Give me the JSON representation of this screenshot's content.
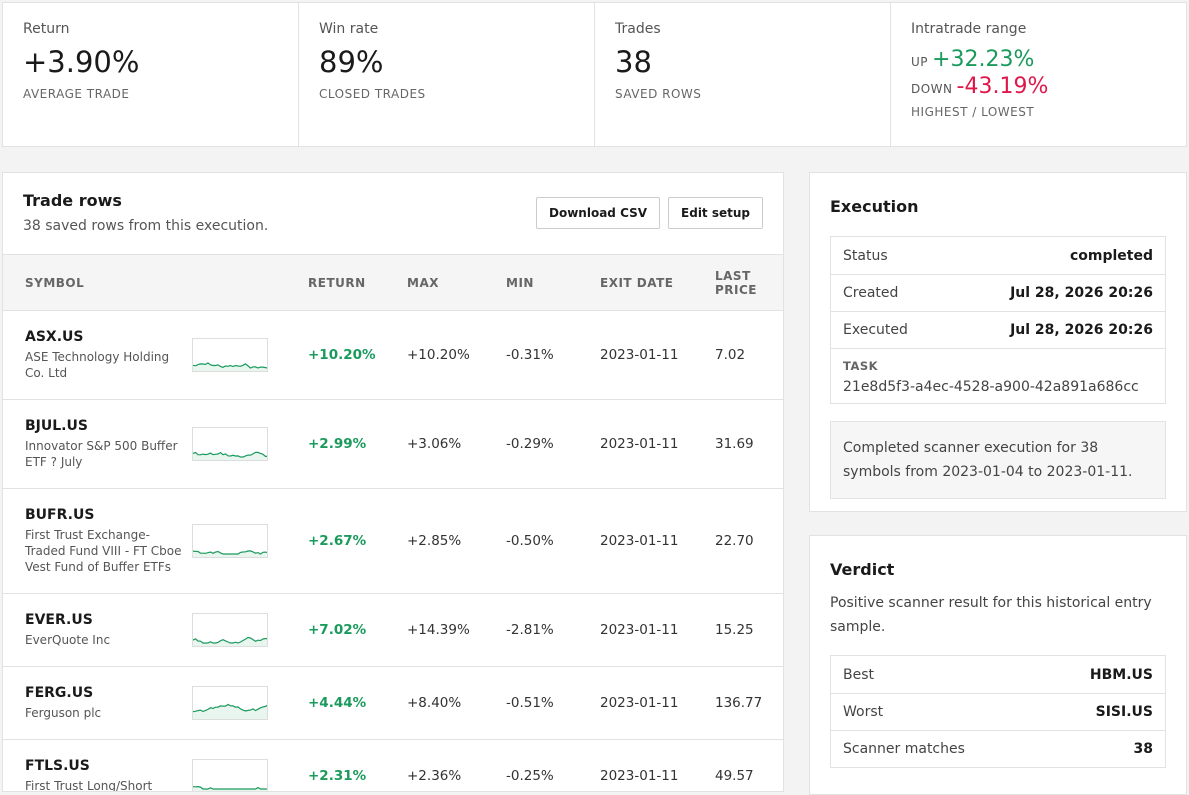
{
  "stats": [
    {
      "label": "Return",
      "value": "+3.90%",
      "caption": "AVERAGE TRADE"
    },
    {
      "label": "Win rate",
      "value": "89%",
      "caption": "CLOSED TRADES"
    },
    {
      "label": "Trades",
      "value": "38",
      "caption": "SAVED ROWS"
    }
  ],
  "range": {
    "label": "Intratrade range",
    "up_label": "UP",
    "up": "+32.23%",
    "down_label": "DOWN",
    "down": "-43.19%",
    "caption": "HIGHEST / LOWEST"
  },
  "trade_rows": {
    "title": "Trade rows",
    "subtitle": "38 saved rows from this execution.",
    "buttons": [
      "Download CSV",
      "Edit setup"
    ],
    "columns": [
      "SYMBOL",
      "RETURN",
      "MAX",
      "MIN",
      "EXIT DATE",
      "LAST PRICE"
    ],
    "rows": [
      [
        "ASX.US",
        "ASE Technology Holding Co. Ltd",
        "+10.20%",
        "+10.20%",
        "-0.31%",
        "2023-01-11",
        "7.02"
      ],
      [
        "BJUL.US",
        "Innovator S&P 500 Buffer ETF ? July",
        "+2.99%",
        "+3.06%",
        "-0.29%",
        "2023-01-11",
        "31.69"
      ],
      [
        "BUFR.US",
        "First Trust Exchange-Traded Fund VIII - FT Cboe Vest Fund of Buffer ETFs",
        "+2.67%",
        "+2.85%",
        "-0.50%",
        "2023-01-11",
        "22.70"
      ],
      [
        "EVER.US",
        "EverQuote Inc",
        "+7.02%",
        "+14.39%",
        "-2.81%",
        "2023-01-11",
        "15.25"
      ],
      [
        "FERG.US",
        "Ferguson plc",
        "+4.44%",
        "+8.40%",
        "-0.51%",
        "2023-01-11",
        "136.77"
      ],
      [
        "FTLS.US",
        "First Trust Long/Short",
        "+2.31%",
        "+2.36%",
        "-0.25%",
        "2023-01-11",
        "49.57"
      ]
    ]
  },
  "execution": {
    "title": "Execution",
    "rows": [
      {
        "label": "Status",
        "value": "completed"
      },
      {
        "label": "Created",
        "value": "Jul 28, 2026 20:26"
      },
      {
        "label": "Executed",
        "value": "Jul 28, 2026 20:26"
      }
    ],
    "task_label": "TASK",
    "task": "21e8d5f3-a4ec-4528-a900-42a891a686cc",
    "note": "Completed scanner execution for 38 symbols from 2023-01-04 to 2023-01-11."
  },
  "verdict": {
    "title": "Verdict",
    "text": "Positive scanner result for this historical entry sample.",
    "rows": [
      {
        "label": "Best",
        "value": "HBM.US"
      },
      {
        "label": "Worst",
        "value": "SISI.US"
      },
      {
        "label": "Scanner matches",
        "value": "38"
      }
    ]
  }
}
